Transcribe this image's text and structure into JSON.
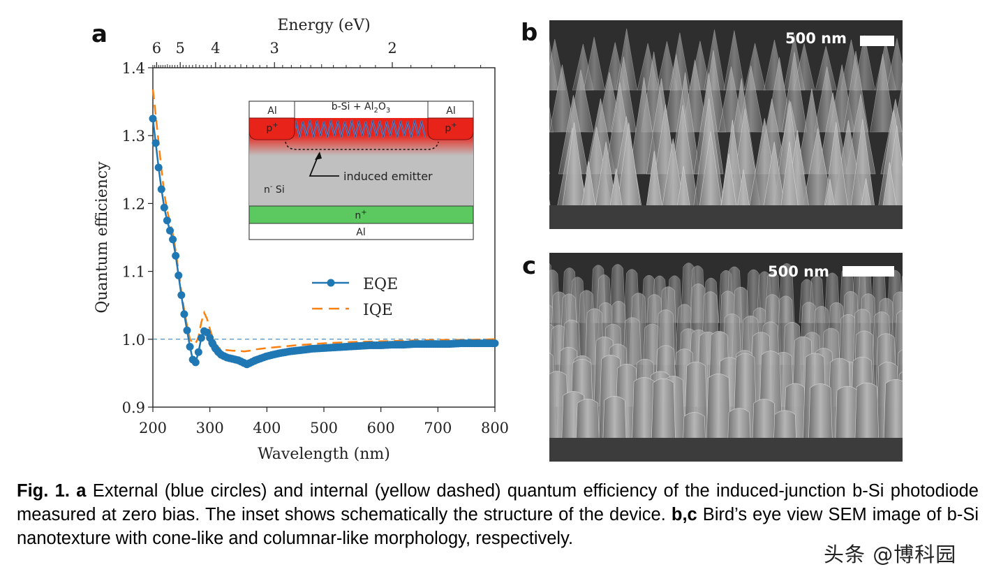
{
  "panels": {
    "a": {
      "letter": "a"
    },
    "b": {
      "letter": "b",
      "scalebar": "500 nm",
      "morphology": "cone-like"
    },
    "c": {
      "letter": "c",
      "scalebar": "500 nm",
      "morphology": "columnar-like"
    }
  },
  "inset": {
    "top_label_prefix": "b-Si + Al",
    "top_label_sub1": "2",
    "top_label_mid": "O",
    "top_label_sub2": "3",
    "al_left": "Al",
    "al_right": "Al",
    "p_left": "p",
    "p_right": "p",
    "p_sup": "+",
    "induced_emitter": "induced emitter",
    "n_minus_prefix": "n",
    "n_minus_sup": "-",
    "n_minus_suffix": " Si",
    "n_plus": "n",
    "n_plus_sup": "+",
    "al_bottom": "Al",
    "colors": {
      "p_plus": "#e8241a",
      "bulk": "#c0c0c0",
      "n_plus": "#5cc860",
      "al": "#ffffff",
      "texture": "#5a8cf0"
    }
  },
  "chart_data": {
    "type": "line",
    "xlabel": "Wavelength (nm)",
    "ylabel": "Quantum efficiency",
    "top_xlabel": "Energy (eV)",
    "xlim": [
      200,
      800
    ],
    "ylim": [
      0.9,
      1.4
    ],
    "xticks": [
      "200",
      "300",
      "400",
      "500",
      "600",
      "700",
      "800"
    ],
    "yticks": [
      "0.9",
      "1.0",
      "1.1",
      "1.2",
      "1.3",
      "1.4"
    ],
    "top_ticks": [
      "6",
      "5",
      "4",
      "3",
      "2"
    ],
    "top_tick_values_ev": [
      6,
      5,
      4,
      3,
      2
    ],
    "reference_line_y": 1.0,
    "legend": {
      "position": "center-right",
      "entries": [
        "EQE",
        "IQE"
      ]
    },
    "series": [
      {
        "name": "EQE",
        "color": "#1f77b4",
        "style": "solid-circles",
        "x": [
          200,
          205,
          210,
          215,
          220,
          225,
          230,
          235,
          240,
          245,
          250,
          255,
          260,
          265,
          270,
          275,
          280,
          285,
          290,
          295,
          300,
          305,
          310,
          315,
          320,
          325,
          330,
          335,
          340,
          345,
          350,
          355,
          360,
          365,
          370,
          380,
          390,
          400,
          420,
          440,
          460,
          480,
          500,
          520,
          540,
          560,
          580,
          600,
          620,
          640,
          660,
          680,
          700,
          720,
          740,
          760,
          780,
          800
        ],
        "y": [
          1.325,
          1.289,
          1.253,
          1.221,
          1.194,
          1.175,
          1.16,
          1.147,
          1.123,
          1.094,
          1.065,
          1.037,
          1.013,
          0.989,
          0.97,
          0.966,
          0.981,
          1.002,
          1.012,
          1.01,
          1.002,
          0.993,
          0.986,
          0.981,
          0.977,
          0.975,
          0.973,
          0.972,
          0.971,
          0.97,
          0.969,
          0.967,
          0.965,
          0.963,
          0.965,
          0.969,
          0.972,
          0.975,
          0.979,
          0.982,
          0.984,
          0.986,
          0.987,
          0.988,
          0.989,
          0.99,
          0.991,
          0.991,
          0.992,
          0.992,
          0.993,
          0.993,
          0.993,
          0.993,
          0.994,
          0.994,
          0.994,
          0.994
        ]
      },
      {
        "name": "IQE",
        "color": "#ff7f0e",
        "style": "dashed",
        "x": [
          200,
          205,
          210,
          215,
          220,
          225,
          230,
          235,
          240,
          245,
          250,
          255,
          260,
          265,
          270,
          275,
          280,
          285,
          290,
          295,
          300,
          305,
          310,
          315,
          320,
          330,
          340,
          350,
          360,
          370,
          380,
          400,
          450,
          500,
          550,
          600,
          650,
          700,
          750,
          800
        ],
        "y": [
          1.368,
          1.33,
          1.29,
          1.25,
          1.215,
          1.19,
          1.172,
          1.155,
          1.13,
          1.1,
          1.07,
          1.043,
          1.02,
          1.0,
          0.994,
          0.994,
          1.003,
          1.025,
          1.039,
          1.03,
          1.015,
          1.002,
          0.993,
          0.988,
          0.985,
          0.984,
          0.983,
          0.983,
          0.982,
          0.983,
          0.985,
          0.987,
          0.991,
          0.994,
          0.996,
          0.997,
          0.998,
          0.999,
          0.999,
          1.0
        ]
      }
    ]
  },
  "caption": {
    "fig": "Fig. 1.",
    "a": "a",
    "text_a": " External (blue circles) and internal (yellow dashed) quantum efficiency of the induced-junction b-Si photodiode measured at zero bias. The inset shows schematically the structure of the device. ",
    "bc": "b,c",
    "text_bc": " Bird’s eye view SEM image of b-Si nanotexture with cone-like and columnar-like morphology, respectively."
  },
  "watermark": "头条 @博科园"
}
